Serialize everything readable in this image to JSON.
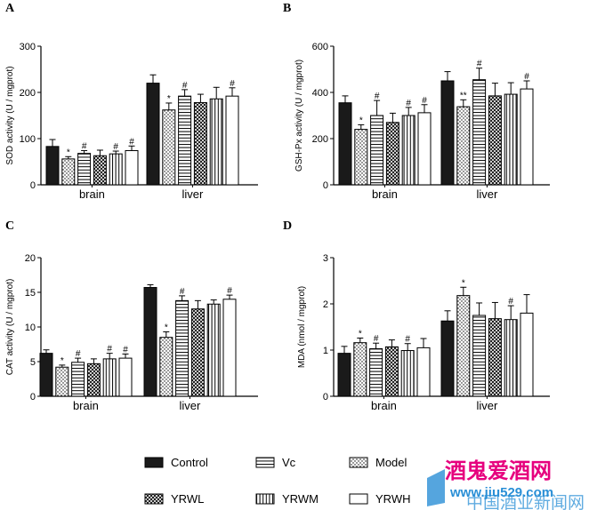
{
  "figure": {
    "series_names": [
      "Control",
      "Vc",
      "Model",
      "YRWL",
      "YRWM",
      "YRWH"
    ],
    "legend": [
      {
        "label": "Control",
        "pattern": "solid"
      },
      {
        "label": "Vc",
        "pattern": "hlines"
      },
      {
        "label": "Model",
        "pattern": "dots"
      },
      {
        "label": "YRWL",
        "pattern": "cross"
      },
      {
        "label": "YRWM",
        "pattern": "vlines"
      },
      {
        "label": "YRWH",
        "pattern": "white"
      }
    ],
    "bar_order_patterns": [
      "solid",
      "dots",
      "hlines",
      "cross",
      "vlines",
      "white"
    ],
    "colors": {
      "ink": "#000000",
      "fill_dark": "#1a1a1a",
      "background": "#ffffff"
    }
  },
  "watermark": {
    "line1": "酒鬼爱酒网",
    "line2": "www.jiu529.com",
    "line3": "中国酒业新闻网"
  },
  "chart_data": [
    {
      "panel": "A",
      "type": "bar",
      "ylabel": "SOD activity (U / mgprot)",
      "ylim": [
        0,
        300
      ],
      "yticks": [
        "0",
        "100",
        "200",
        "300"
      ],
      "categories": [
        "brain",
        "liver"
      ],
      "series": [
        {
          "name": "Control",
          "values": [
            83,
            220
          ],
          "errors": [
            15,
            18
          ],
          "marks": [
            "",
            ""
          ]
        },
        {
          "name": "Model",
          "values": [
            56,
            162
          ],
          "errors": [
            5,
            15
          ],
          "marks": [
            "*",
            "*"
          ]
        },
        {
          "name": "Vc",
          "values": [
            68,
            192
          ],
          "errors": [
            6,
            14
          ],
          "marks": [
            "#",
            "#"
          ]
        },
        {
          "name": "YRWL",
          "values": [
            63,
            178
          ],
          "errors": [
            12,
            18
          ],
          "marks": [
            "",
            ""
          ]
        },
        {
          "name": "YRWM",
          "values": [
            67,
            186
          ],
          "errors": [
            6,
            25
          ],
          "marks": [
            "#",
            ""
          ]
        },
        {
          "name": "YRWH",
          "values": [
            74,
            192
          ],
          "errors": [
            10,
            18
          ],
          "marks": [
            "#",
            "#"
          ]
        }
      ]
    },
    {
      "panel": "B",
      "type": "bar",
      "ylabel": "GSH-Px activity (U / mgprot)",
      "ylim": [
        0,
        600
      ],
      "yticks": [
        "0",
        "200",
        "400",
        "600"
      ],
      "categories": [
        "brain",
        "liver"
      ],
      "series": [
        {
          "name": "Control",
          "values": [
            355,
            450
          ],
          "errors": [
            30,
            40
          ],
          "marks": [
            "",
            ""
          ]
        },
        {
          "name": "Model",
          "values": [
            240,
            338
          ],
          "errors": [
            20,
            30
          ],
          "marks": [
            "*",
            "**"
          ]
        },
        {
          "name": "Vc",
          "values": [
            300,
            455
          ],
          "errors": [
            65,
            50
          ],
          "marks": [
            "#",
            "#"
          ]
        },
        {
          "name": "YRWL",
          "values": [
            270,
            385
          ],
          "errors": [
            40,
            55
          ],
          "marks": [
            "",
            ""
          ]
        },
        {
          "name": "YRWM",
          "values": [
            300,
            392
          ],
          "errors": [
            35,
            50
          ],
          "marks": [
            "#",
            ""
          ]
        },
        {
          "name": "YRWH",
          "values": [
            312,
            415
          ],
          "errors": [
            35,
            35
          ],
          "marks": [
            "#",
            "#"
          ]
        }
      ]
    },
    {
      "panel": "C",
      "type": "bar",
      "ylabel": "CAT activity (U / mgprot)",
      "ylim": [
        0,
        20
      ],
      "yticks": [
        "0",
        "5",
        "10",
        "15",
        "20"
      ],
      "categories": [
        "brain",
        "liver"
      ],
      "series": [
        {
          "name": "Control",
          "values": [
            6.2,
            15.7
          ],
          "errors": [
            0.5,
            0.4
          ],
          "marks": [
            "",
            ""
          ]
        },
        {
          "name": "Model",
          "values": [
            4.2,
            8.5
          ],
          "errors": [
            0.3,
            0.8
          ],
          "marks": [
            "*",
            "*"
          ]
        },
        {
          "name": "Vc",
          "values": [
            4.9,
            13.8
          ],
          "errors": [
            0.6,
            0.7
          ],
          "marks": [
            "#",
            "#"
          ]
        },
        {
          "name": "YRWL",
          "values": [
            4.7,
            12.6
          ],
          "errors": [
            0.7,
            1.2
          ],
          "marks": [
            "",
            ""
          ]
        },
        {
          "name": "YRWM",
          "values": [
            5.4,
            13.3
          ],
          "errors": [
            0.8,
            0.6
          ],
          "marks": [
            "#",
            ""
          ]
        },
        {
          "name": "YRWH",
          "values": [
            5.5,
            14.0
          ],
          "errors": [
            0.6,
            0.6
          ],
          "marks": [
            "#",
            "#"
          ]
        }
      ]
    },
    {
      "panel": "D",
      "type": "bar",
      "ylabel": "MDA (nmol / mgprot)",
      "ylim": [
        0,
        3
      ],
      "yticks": [
        "0",
        "1",
        "2",
        "3"
      ],
      "categories": [
        "brain",
        "liver"
      ],
      "series": [
        {
          "name": "Control",
          "values": [
            0.93,
            1.63
          ],
          "errors": [
            0.15,
            0.22
          ],
          "marks": [
            "",
            ""
          ]
        },
        {
          "name": "Model",
          "values": [
            1.16,
            2.18
          ],
          "errors": [
            0.1,
            0.18
          ],
          "marks": [
            "*",
            "*"
          ]
        },
        {
          "name": "Vc",
          "values": [
            1.03,
            1.75
          ],
          "errors": [
            0.12,
            0.27
          ],
          "marks": [
            "#",
            ""
          ]
        },
        {
          "name": "YRWL",
          "values": [
            1.07,
            1.68
          ],
          "errors": [
            0.15,
            0.35
          ],
          "marks": [
            "",
            ""
          ]
        },
        {
          "name": "YRWM",
          "values": [
            0.99,
            1.66
          ],
          "errors": [
            0.15,
            0.3
          ],
          "marks": [
            "#",
            "#"
          ]
        },
        {
          "name": "YRWH",
          "values": [
            1.05,
            1.8
          ],
          "errors": [
            0.2,
            0.4
          ],
          "marks": [
            "",
            ""
          ]
        }
      ]
    }
  ]
}
